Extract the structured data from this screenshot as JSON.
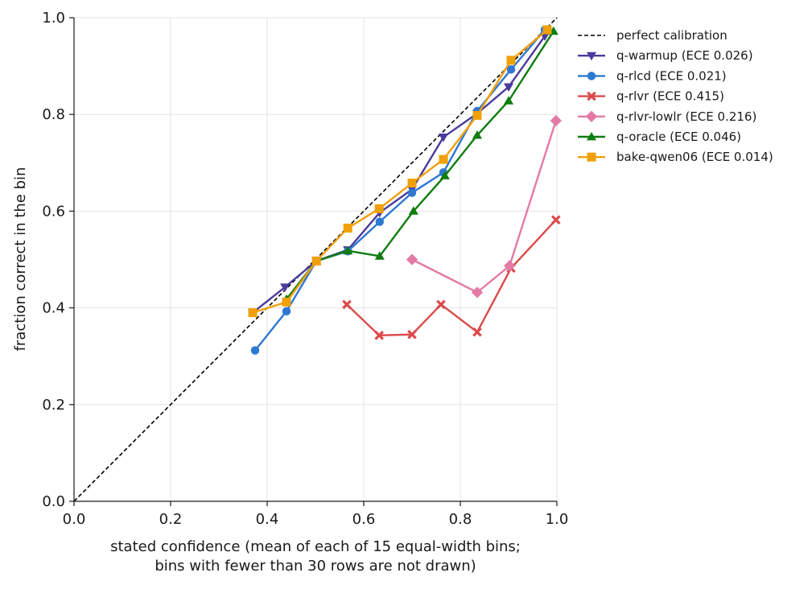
{
  "chart_data": {
    "type": "line",
    "title": "",
    "xlabel_lines": [
      "stated confidence (mean of each of 15 equal-width bins;",
      "bins with fewer than 30 rows are not drawn)"
    ],
    "ylabel": "fraction correct in the bin",
    "xlim": [
      0.0,
      1.0
    ],
    "ylim": [
      0.0,
      1.0
    ],
    "xticks": [
      "0.0",
      "0.2",
      "0.4",
      "0.6",
      "0.8",
      "1.0"
    ],
    "yticks": [
      "0.0",
      "0.2",
      "0.4",
      "0.6",
      "0.8",
      "1.0"
    ],
    "grid": true,
    "legend_position": "outside-right-top",
    "reference_line": {
      "name": "perfect calibration",
      "color": "#000000",
      "x": [
        0,
        1
      ],
      "y": [
        0,
        1
      ]
    },
    "series": [
      {
        "name": "q-warmup (ECE 0.026)",
        "color": "#4a3b9e",
        "marker": "triangle-down",
        "x": [
          0.37,
          0.437,
          0.502,
          0.567,
          0.633,
          0.7,
          0.765,
          0.835,
          0.9,
          0.975
        ],
        "y": [
          0.39,
          0.443,
          0.497,
          0.52,
          0.597,
          0.645,
          0.753,
          0.802,
          0.857,
          0.962
        ]
      },
      {
        "name": "q-rlcd (ECE 0.021)",
        "color": "#2e78d2",
        "marker": "circle",
        "x": [
          0.375,
          0.44,
          0.502,
          0.567,
          0.633,
          0.7,
          0.765,
          0.835,
          0.905,
          0.975
        ],
        "y": [
          0.312,
          0.393,
          0.497,
          0.517,
          0.578,
          0.638,
          0.68,
          0.807,
          0.893,
          0.975
        ]
      },
      {
        "name": "q-rlvr (ECE 0.415)",
        "color": "#dc4a4a",
        "marker": "x",
        "x": [
          0.565,
          0.632,
          0.7,
          0.76,
          0.835,
          0.905,
          0.998
        ],
        "y": [
          0.407,
          0.343,
          0.345,
          0.407,
          0.35,
          0.482,
          0.582
        ]
      },
      {
        "name": "q-rlvr-lowlr (ECE 0.216)",
        "color": "#e47aa6",
        "marker": "diamond",
        "x": [
          0.7,
          0.835,
          0.902,
          0.998
        ],
        "y": [
          0.5,
          0.432,
          0.487,
          0.787
        ]
      },
      {
        "name": "q-oracle (ECE 0.046)",
        "color": "#0f7d0f",
        "marker": "triangle-up",
        "x": [
          0.44,
          0.502,
          0.567,
          0.633,
          0.703,
          0.768,
          0.835,
          0.9,
          0.993
        ],
        "y": [
          0.418,
          0.497,
          0.518,
          0.507,
          0.6,
          0.673,
          0.757,
          0.828,
          0.972
        ]
      },
      {
        "name": "bake-qwen06 (ECE 0.014)",
        "color": "#f0a00a",
        "marker": "square",
        "x": [
          0.37,
          0.44,
          0.502,
          0.567,
          0.632,
          0.7,
          0.765,
          0.835,
          0.905,
          0.98
        ],
        "y": [
          0.39,
          0.412,
          0.497,
          0.565,
          0.605,
          0.658,
          0.707,
          0.798,
          0.912,
          0.975
        ]
      }
    ]
  }
}
